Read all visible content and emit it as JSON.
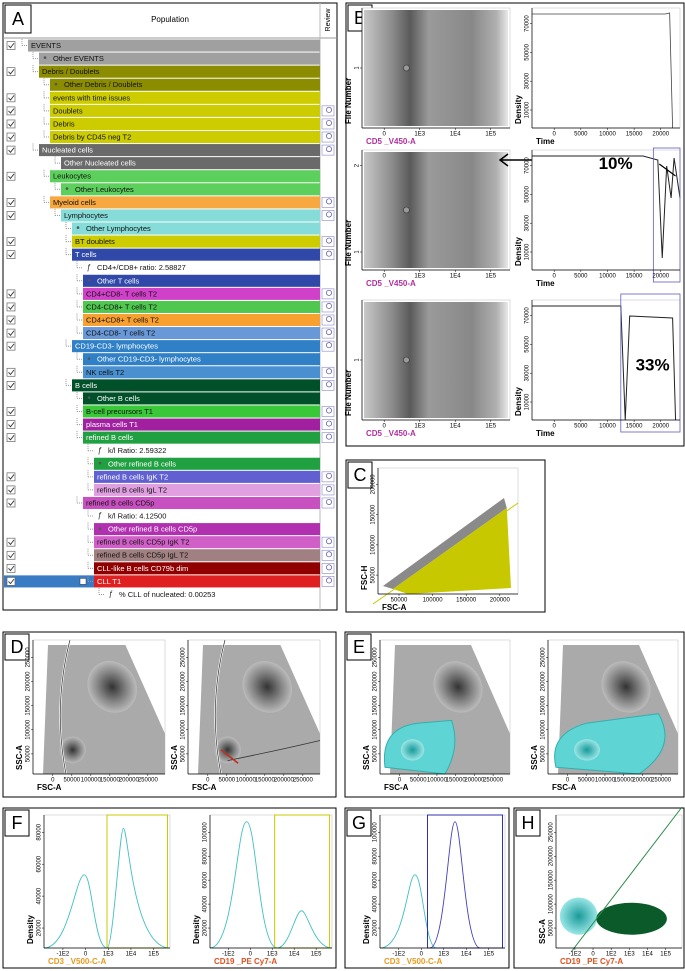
{
  "hierarchy": {
    "letter": "A",
    "header": "Population",
    "review_header": "Review",
    "rows": [
      {
        "label": "EVENTS",
        "indent": 0,
        "color": "#a0a0a0",
        "checkbox": true
      },
      {
        "label": "Other EVENTS",
        "indent": 1,
        "color": "#a0a0a0",
        "marker": "•"
      },
      {
        "label": "Debris / Doublets",
        "indent": 1,
        "color": "#8c8c00",
        "checkbox": true
      },
      {
        "label": "Other Debris / Doublets",
        "indent": 2,
        "color": "#8c8c00",
        "marker": "•"
      },
      {
        "label": "events with time issues",
        "indent": 2,
        "color": "#cccc00",
        "checkbox": true
      },
      {
        "label": "Doublets",
        "indent": 2,
        "color": "#cccc00",
        "checkbox": true,
        "review": true
      },
      {
        "label": "Debris",
        "indent": 2,
        "color": "#cccc00",
        "checkbox": true,
        "review": true
      },
      {
        "label": "Debris by CD45 neg T2",
        "indent": 2,
        "color": "#cccc00",
        "checkbox": true,
        "review": true
      },
      {
        "label": "Nucleated cells",
        "indent": 1,
        "color": "#6a6a6a",
        "checkbox": true,
        "review": true
      },
      {
        "label": "Other Nucleated cells",
        "indent": 3,
        "color": "#6a6a6a"
      },
      {
        "label": "Leukocytes",
        "indent": 2,
        "color": "#5ccf5c",
        "checkbox": true
      },
      {
        "label": "Other Leukocytes",
        "indent": 3,
        "color": "#5ccf5c",
        "marker": "•"
      },
      {
        "label": "Myeloid cells",
        "indent": 2,
        "color": "#f8a840",
        "checkbox": true,
        "review": true
      },
      {
        "label": "Lymphocytes",
        "indent": 3,
        "color": "#86dcd8",
        "checkbox": true,
        "review": true
      },
      {
        "label": "Other Lymphocytes",
        "indent": 4,
        "color": "#86dcd8",
        "marker": "•"
      },
      {
        "label": "BT doublets",
        "indent": 4,
        "color": "#cccc00",
        "checkbox": true,
        "review": true
      },
      {
        "label": "T cells",
        "indent": 4,
        "color": "#3048a8",
        "checkbox": true,
        "review": true
      },
      {
        "label": "CD4+/CD8+ ratio: 2.58827",
        "indent": 5,
        "marker": "ƒ"
      },
      {
        "label": "Other T cells",
        "indent": 5,
        "color": "#3048a8",
        "marker": "•"
      },
      {
        "label": "CD4+CD8- T cells T2",
        "indent": 5,
        "color": "#d040c8",
        "checkbox": true,
        "review": true
      },
      {
        "label": "CD4-CD8+ T cells T2",
        "indent": 5,
        "color": "#50c850",
        "checkbox": true,
        "review": true
      },
      {
        "label": "CD4+CD8+ T cells T2",
        "indent": 5,
        "color": "#f8a030",
        "checkbox": true,
        "review": true
      },
      {
        "label": "CD4-CD8- T cells T2",
        "indent": 5,
        "color": "#6898d8",
        "checkbox": true,
        "review": true
      },
      {
        "label": "CD19-CD3- lymphocytes",
        "indent": 4,
        "color": "#3080c8",
        "checkbox": true,
        "review": true
      },
      {
        "label": "Other CD19-CD3- lymphocytes",
        "indent": 5,
        "color": "#3080c8",
        "marker": "•"
      },
      {
        "label": "NK cells T2",
        "indent": 5,
        "color": "#4a90d0",
        "checkbox": true,
        "review": true
      },
      {
        "label": "B cells",
        "indent": 4,
        "color": "#00502a",
        "checkbox": true,
        "review": true
      },
      {
        "label": "Other B cells",
        "indent": 5,
        "color": "#00502a",
        "marker": "•"
      },
      {
        "label": "B-cell precursors T1",
        "indent": 5,
        "color": "#38c838",
        "checkbox": true,
        "review": true
      },
      {
        "label": "plasma cells T1",
        "indent": 5,
        "color": "#a020a0",
        "checkbox": true,
        "review": true
      },
      {
        "label": "refined B cells",
        "indent": 5,
        "color": "#20a040",
        "checkbox": true,
        "review": true
      },
      {
        "label": "k/l Ratio: 2.59322",
        "indent": 6,
        "marker": "ƒ"
      },
      {
        "label": "Other refined B cells",
        "indent": 6,
        "color": "#20a040",
        "marker": "•"
      },
      {
        "label": "refined B cells IgK T2",
        "indent": 6,
        "color": "#6060d0",
        "checkbox": true,
        "review": true
      },
      {
        "label": "refined B cells IgL T2",
        "indent": 6,
        "color": "#e0a0e0",
        "checkbox": true,
        "review": true
      },
      {
        "label": "refined B cells CD5p",
        "indent": 5,
        "color": "#c850c0",
        "checkbox": true,
        "review": true
      },
      {
        "label": "k/l Ratio: 4.12500",
        "indent": 6,
        "marker": "ƒ"
      },
      {
        "label": "Other refined B cells CD5p",
        "indent": 6,
        "color": "#b030b0",
        "marker": "•"
      },
      {
        "label": "refined B cells CD5p IgK T2",
        "indent": 6,
        "color": "#d060c8",
        "checkbox": true,
        "review": true
      },
      {
        "label": "refined B cells CD5p IgL T2",
        "indent": 6,
        "color": "#a08080",
        "checkbox": true,
        "review": true
      },
      {
        "label": "CLL-like B cells CD79b dim",
        "indent": 6,
        "color": "#900000",
        "checkbox": true,
        "review": true
      },
      {
        "label": "CLL T1",
        "indent": 6,
        "color": "#e02020",
        "checkbox": true,
        "review": true,
        "selected": true
      },
      {
        "label": "% CLL of nucleated: 0.00253",
        "indent": 7,
        "marker": "ƒ"
      }
    ]
  },
  "panels": [
    {
      "letter": "B",
      "plots": [
        {
          "xlabel": "CD5 _V450-A",
          "ylabel": "File Number",
          "xticks": [
            "0",
            "1E3",
            "1E4",
            "1E5"
          ],
          "yticks": [
            "1"
          ]
        },
        {
          "xlabel": "Time",
          "ylabel": "Density",
          "xticks": [
            "0",
            "5000",
            "10000",
            "15000",
            "20000"
          ],
          "yticks": [
            "10000",
            "30000",
            "50000",
            "70000"
          ]
        },
        {
          "xlabel": "CD5 _V450-A",
          "ylabel": "File Number",
          "xticks": [
            "0",
            "1E3",
            "1E4",
            "1E5"
          ],
          "yticks": [
            "1",
            "2"
          ]
        },
        {
          "xlabel": "Time",
          "ylabel": "Density",
          "xticks": [
            "0",
            "5000",
            "10000",
            "15000",
            "20000"
          ],
          "yticks": [
            "10000",
            "30000",
            "50000",
            "70000"
          ],
          "annotation": "10%"
        },
        {
          "xlabel": "CD5 _V450-A",
          "ylabel": "File Number",
          "xticks": [
            "0",
            "1E3",
            "1E4",
            "1E5"
          ],
          "yticks": [
            "1"
          ]
        },
        {
          "xlabel": "Time",
          "ylabel": "Density",
          "xticks": [
            "0",
            "5000",
            "10000",
            "15000",
            "20000"
          ],
          "yticks": [
            "10000",
            "30000",
            "50000",
            "70000"
          ],
          "annotation": "33%"
        }
      ]
    },
    {
      "letter": "C",
      "plots": [
        {
          "xlabel": "FSC-A",
          "ylabel": "FSC-H",
          "xticks": [
            "50000",
            "100000",
            "150000",
            "200000"
          ],
          "yticks": [
            "50000",
            "100000",
            "150000",
            "200000"
          ]
        }
      ]
    },
    {
      "letter": "D",
      "plots": [
        {
          "xlabel": "FSC-A",
          "ylabel": "SSC-A",
          "xticks": [
            "0",
            "50000",
            "100000",
            "150000",
            "200000",
            "250000"
          ],
          "yticks": [
            "50000",
            "100000",
            "150000",
            "200000",
            "250000"
          ]
        },
        {
          "xlabel": "FSC-A",
          "ylabel": "SSC-A",
          "xticks": [
            "0",
            "50000",
            "100000",
            "150000",
            "200000",
            "250000"
          ],
          "yticks": [
            "50000",
            "100000",
            "150000",
            "200000",
            "250000"
          ]
        }
      ]
    },
    {
      "letter": "E",
      "plots": [
        {
          "xlabel": "FSC-A",
          "ylabel": "SSC-A",
          "xticks": [
            "0",
            "50000",
            "100000",
            "150000",
            "200000",
            "250000"
          ],
          "yticks": [
            "50000",
            "100000",
            "150000",
            "200000",
            "250000"
          ]
        },
        {
          "xlabel": "FSC-A",
          "ylabel": "SSC-A",
          "xticks": [
            "0",
            "50000",
            "100000",
            "150000",
            "200000",
            "250000"
          ],
          "yticks": [
            "50000",
            "100000",
            "150000",
            "200000",
            "250000"
          ]
        }
      ]
    },
    {
      "letter": "F",
      "plots": [
        {
          "xlabel": "CD3 _V500-C-A",
          "ylabel": "Density",
          "xticks": [
            "-1E2",
            "0",
            "1E3",
            "1E4",
            "1E5"
          ],
          "yticks": [
            "20000",
            "40000",
            "60000",
            "80000"
          ]
        },
        {
          "xlabel": "CD19 _PE Cy7-A",
          "ylabel": "Density",
          "xticks": [
            "-1E2",
            "0",
            "1E3",
            "1E4",
            "1E5"
          ],
          "yticks": [
            "20000",
            "40000",
            "60000",
            "80000",
            "100000"
          ]
        }
      ]
    },
    {
      "letter": "G",
      "plots": [
        {
          "xlabel": "CD3 _V500-C-A",
          "ylabel": "Density",
          "xticks": [
            "-1E2",
            "0",
            "1E3",
            "1E4",
            "1E5"
          ],
          "yticks": [
            "20000",
            "40000",
            "60000",
            "80000",
            "100000"
          ]
        }
      ]
    },
    {
      "letter": "H",
      "plots": [
        {
          "xlabel": "CD19 _PE Cy7-A",
          "ylabel": "SSC-A",
          "xticks": [
            "-1E2",
            "0",
            "1E2",
            "1E3",
            "1E4",
            "1E5"
          ],
          "yticks": [
            "50000",
            "100000",
            "150000",
            "200000",
            "250000"
          ]
        }
      ]
    }
  ]
}
